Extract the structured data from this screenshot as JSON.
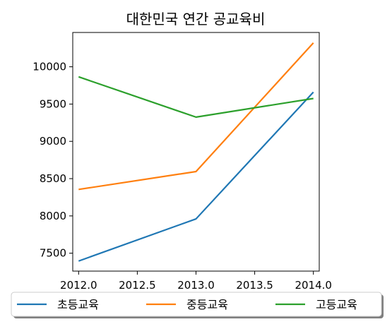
{
  "chart_data": {
    "type": "line",
    "title": "대한민국 연간 공교육비",
    "xlabel": "",
    "ylabel": "",
    "x": [
      2012,
      2013,
      2014
    ],
    "xticks": [
      "2012.0",
      "2012.5",
      "2013.0",
      "2013.5",
      "2014.0"
    ],
    "xlim": [
      2011.95,
      2014.05
    ],
    "yticks": [
      "7500",
      "8000",
      "8500",
      "9000",
      "9500",
      "10000"
    ],
    "ylim": [
      7260,
      10460
    ],
    "series": [
      {
        "name": "초등교육",
        "color": "#1f77b4",
        "values": [
          7395,
          7960,
          9660
        ]
      },
      {
        "name": "중등교육",
        "color": "#ff7f0e",
        "values": [
          8355,
          8595,
          10320
        ]
      },
      {
        "name": "고등교육",
        "color": "#2ca02c",
        "values": [
          9865,
          9325,
          9575
        ]
      }
    ],
    "grid": false,
    "legend_position": "bottom"
  }
}
